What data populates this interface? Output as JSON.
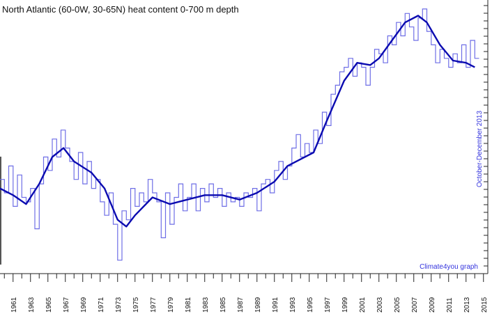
{
  "chart_data": {
    "type": "line",
    "title": "North Atlantic (60-0W, 30-65N) heat content 0-700 m depth",
    "date_note": "October-December 2013",
    "credit": "Climate4you graph",
    "xlabel": "",
    "ylabel": "",
    "xlim": [
      1959.5,
      2015.5
    ],
    "y_axis_labels_visible": false,
    "grid": false,
    "x_tick_labels": [
      "1961",
      "1963",
      "1965",
      "1967",
      "1969",
      "1971",
      "1973",
      "1975",
      "1977",
      "1979",
      "1981",
      "1983",
      "1985",
      "1987",
      "1989",
      "1991",
      "1993",
      "1995",
      "1997",
      "1999",
      "2001",
      "2003",
      "2005",
      "2007",
      "2009",
      "2011",
      "2013",
      "2015"
    ],
    "colors": {
      "monthly": "#6e6ee6",
      "running_mean": "#0b0bb0",
      "text_note": "#3333dd"
    },
    "series": [
      {
        "style": "step",
        "color": "#6e6ee6",
        "x": [
          1959.5,
          1960.0,
          1960.5,
          1961.0,
          1961.5,
          1962.0,
          1962.5,
          1963.0,
          1963.5,
          1964.0,
          1964.5,
          1965.0,
          1965.5,
          1966.0,
          1966.5,
          1967.0,
          1967.5,
          1968.0,
          1968.5,
          1969.0,
          1969.5,
          1970.0,
          1970.5,
          1971.0,
          1971.5,
          1972.0,
          1972.5,
          1973.0,
          1973.5,
          1974.0,
          1974.5,
          1975.0,
          1975.5,
          1976.0,
          1976.5,
          1977.0,
          1977.5,
          1978.0,
          1978.5,
          1979.0,
          1979.5,
          1980.0,
          1980.5,
          1981.0,
          1981.5,
          1982.0,
          1982.5,
          1983.0,
          1983.5,
          1984.0,
          1984.5,
          1985.0,
          1985.5,
          1986.0,
          1986.5,
          1987.0,
          1987.5,
          1988.0,
          1988.5,
          1989.0,
          1989.5,
          1990.0,
          1990.5,
          1991.0,
          1991.5,
          1992.0,
          1992.5,
          1993.0,
          1993.5,
          1994.0,
          1994.5,
          1995.0,
          1995.5,
          1996.0,
          1996.5,
          1997.0,
          1997.5,
          1998.0,
          1998.5,
          1999.0,
          1999.5,
          2000.0,
          2000.5,
          2001.0,
          2001.5,
          2002.0,
          2002.5,
          2003.0,
          2003.5,
          2004.0,
          2004.5,
          2005.0,
          2005.5,
          2006.0,
          2006.5,
          2007.0,
          2007.5,
          2008.0,
          2008.5,
          2009.0,
          2009.5,
          2010.0,
          2010.5,
          2011.0,
          2011.5,
          2012.0,
          2012.5,
          2013.0,
          2013.5,
          2014.0
        ],
        "y": [
          0.5,
          0.2,
          0.8,
          -0.1,
          0.6,
          0.1,
          0.0,
          0.3,
          -0.6,
          0.4,
          1.0,
          0.7,
          1.4,
          1.0,
          1.6,
          1.2,
          0.9,
          0.5,
          1.1,
          0.4,
          0.9,
          0.3,
          0.5,
          0.0,
          -0.3,
          0.2,
          -0.5,
          -1.3,
          -0.2,
          -0.4,
          0.3,
          -0.1,
          0.2,
          0.0,
          0.5,
          0.2,
          0.0,
          -0.8,
          0.2,
          -0.5,
          0.1,
          0.4,
          -0.2,
          0.1,
          0.4,
          -0.2,
          0.3,
          0.0,
          0.4,
          0.1,
          0.3,
          -0.1,
          0.2,
          0.0,
          0.1,
          -0.1,
          0.2,
          0.1,
          0.3,
          -0.2,
          0.4,
          0.5,
          0.2,
          0.7,
          0.9,
          0.5,
          0.8,
          1.2,
          1.5,
          1.0,
          1.3,
          1.1,
          1.6,
          1.3,
          2.0,
          1.7,
          2.4,
          2.6,
          2.9,
          3.0,
          3.2,
          2.8,
          3.1,
          3.0,
          2.6,
          3.0,
          3.4,
          3.3,
          3.1,
          3.7,
          3.5,
          4.0,
          3.7,
          4.2,
          3.9,
          3.6,
          4.1,
          4.3,
          3.8,
          3.5,
          3.1,
          3.4,
          3.2,
          3.0,
          3.3,
          3.1,
          3.5,
          3.0,
          3.6,
          3.2
        ]
      },
      {
        "style": "line",
        "color": "#0b0bb0",
        "x": [
          1959.5,
          1961,
          1962.5,
          1964,
          1965.5,
          1966.8,
          1968,
          1970,
          1971.5,
          1973,
          1974,
          1975,
          1977,
          1979,
          1981,
          1983,
          1985,
          1987,
          1989,
          1991,
          1992.5,
          1994,
          1995.5,
          1997,
          1999,
          2000.5,
          2002,
          2003,
          2004.5,
          2006,
          2007.5,
          2008.5,
          2010,
          2011.5,
          2013,
          2014
        ],
        "y": [
          0.3,
          0.15,
          -0.05,
          0.4,
          1.0,
          1.2,
          0.9,
          0.65,
          0.3,
          -0.4,
          -0.55,
          -0.3,
          0.1,
          -0.05,
          0.05,
          0.15,
          0.15,
          0.05,
          0.2,
          0.45,
          0.8,
          0.95,
          1.1,
          1.8,
          2.7,
          3.1,
          3.05,
          3.2,
          3.6,
          4.0,
          4.15,
          4.0,
          3.5,
          3.15,
          3.1,
          3.0
        ]
      }
    ]
  }
}
